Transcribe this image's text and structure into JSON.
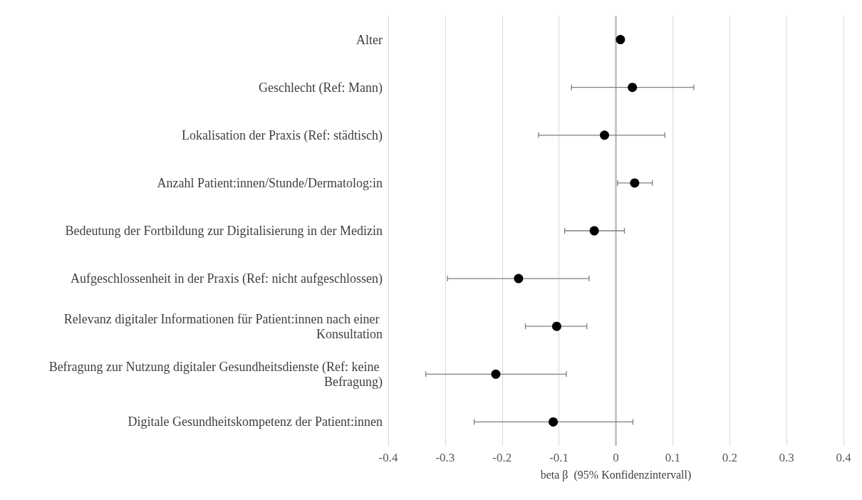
{
  "chart_data": {
    "type": "scatter",
    "orientation": "horizontal",
    "xlabel": "beta β  (95% Konfidenzintervall)",
    "categories": [
      "Alter",
      "Geschlecht (Ref: Mann)",
      "Lokalisation der Praxis (Ref: städtisch)",
      "Anzahl Patient:innen/Stunde/Dermatolog:in",
      "Bedeutung der Fortbildung zur Digitalisierung in der Medizin",
      "Aufgeschlossenheit in der Praxis (Ref: nicht aufgeschlossen)",
      "Relevanz digitaler Informationen für Patient:innen nach einer Konsultation",
      "Befragung zur Nutzung digitaler Gesundheitsdienste (Ref: keine Befragung)",
      "Digitale Gesundheitskompetenz der Patient:innen"
    ],
    "values": [
      0.008,
      0.029,
      -0.02,
      0.033,
      -0.038,
      -0.171,
      -0.104,
      -0.211,
      -0.11
    ],
    "errors": [
      null,
      [
        -0.078,
        0.137
      ],
      [
        -0.136,
        0.086
      ],
      [
        0.003,
        0.064
      ],
      [
        -0.09,
        0.015
      ],
      [
        -0.296,
        -0.047
      ],
      [
        -0.159,
        -0.051
      ],
      [
        -0.334,
        -0.087
      ],
      [
        -0.249,
        0.03
      ]
    ],
    "color": "#000000",
    "xlim": [
      -0.4,
      0.4
    ],
    "xticks": [
      -0.4,
      -0.3,
      -0.2,
      -0.1,
      0,
      0.1,
      0.2,
      0.3,
      0.4
    ],
    "ref_lines": [
      {
        "axis": "x",
        "value": 0,
        "label": null,
        "color": "#c8c8c8"
      }
    ],
    "grid": "x",
    "marker": "circle"
  }
}
